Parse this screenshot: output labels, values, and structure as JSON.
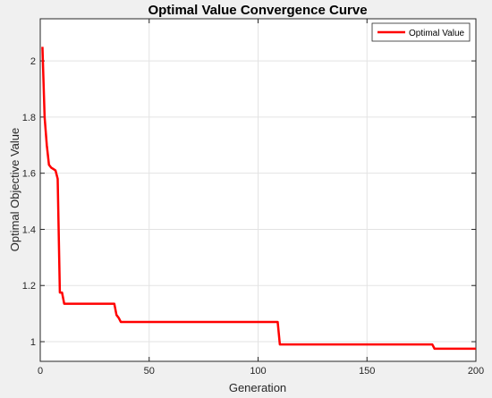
{
  "chart_data": {
    "type": "line",
    "title": "Optimal Value Convergence Curve",
    "xlabel": "Generation",
    "ylabel": "Optimal Objective Value",
    "xlim": [
      0,
      200
    ],
    "ylim": [
      0.93,
      2.15
    ],
    "xticks": [
      0,
      50,
      100,
      150,
      200
    ],
    "yticks": [
      1,
      1.2,
      1.4,
      1.6,
      1.8,
      2
    ],
    "grid": true,
    "legend_position": "top-right",
    "series": [
      {
        "name": "Optimal Value",
        "color": "#ff0000",
        "x": [
          1,
          2,
          3,
          4,
          5,
          6,
          7,
          8,
          9,
          10,
          11,
          12,
          33,
          34,
          35,
          36,
          37,
          108,
          109,
          110,
          179,
          180,
          181,
          200
        ],
        "y": [
          2.05,
          1.8,
          1.7,
          1.63,
          1.62,
          1.615,
          1.61,
          1.58,
          1.175,
          1.175,
          1.135,
          1.135,
          1.135,
          1.135,
          1.095,
          1.085,
          1.07,
          1.07,
          1.07,
          0.99,
          0.99,
          0.99,
          0.975,
          0.975
        ]
      }
    ]
  }
}
